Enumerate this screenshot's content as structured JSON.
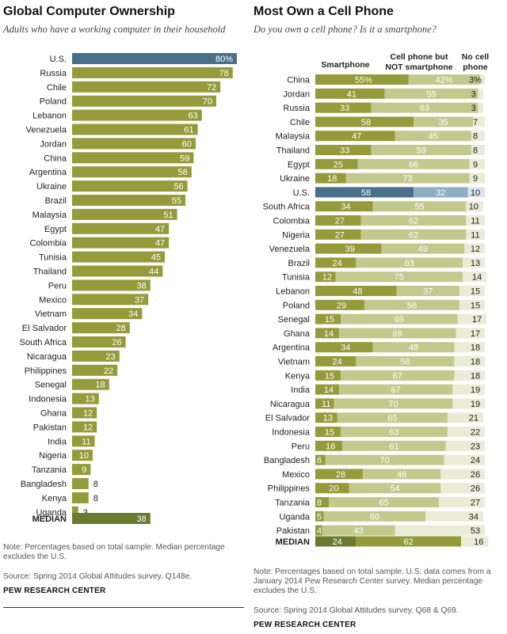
{
  "chart_data": [
    {
      "type": "bar",
      "title": "Global Computer Ownership",
      "subtitle": "Adults who have a working computer in their household",
      "categories": [
        "U.S.",
        "Russia",
        "Chile",
        "Poland",
        "Lebanon",
        "Venezuela",
        "Jordan",
        "China",
        "Argentina",
        "Ukraine",
        "Brazil",
        "Malaysia",
        "Egypt",
        "Colombia",
        "Tunisia",
        "Thailand",
        "Peru",
        "Mexico",
        "Vietnam",
        "El Salvador",
        "South Africa",
        "Nicaragua",
        "Philippines",
        "Senegal",
        "Indonesia",
        "Ghana",
        "Pakistan",
        "India",
        "Nigeria",
        "Tanzania",
        "Bangladesh",
        "Kenya",
        "Uganda",
        "MEDIAN"
      ],
      "values": [
        80,
        78,
        72,
        70,
        63,
        61,
        60,
        59,
        58,
        56,
        55,
        51,
        47,
        47,
        45,
        44,
        38,
        37,
        34,
        28,
        26,
        23,
        22,
        18,
        13,
        12,
        12,
        11,
        10,
        9,
        8,
        8,
        3,
        38
      ],
      "value_labels": [
        "80%",
        "78",
        "72",
        "70",
        "63",
        "61",
        "60",
        "59",
        "58",
        "56",
        "55",
        "51",
        "47",
        "47",
        "45",
        "44",
        "38",
        "37",
        "34",
        "28",
        "26",
        "23",
        "22",
        "18",
        "13",
        "12",
        "12",
        "11",
        "10",
        "9",
        "8",
        "8",
        "3",
        "38"
      ],
      "highlight": "U.S.",
      "summary_row": "MEDIAN",
      "xlim": [
        0,
        80
      ]
    },
    {
      "type": "bar",
      "stacked": true,
      "orientation": "horizontal",
      "title": "Most Own a Cell Phone",
      "subtitle": "Do you own a cell phone? Is it a smartphone?",
      "categories": [
        "China",
        "Jordan",
        "Russia",
        "Chile",
        "Malaysia",
        "Thailand",
        "Egypt",
        "Ukraine",
        "U.S.",
        "South Africa",
        "Colombia",
        "Nigeria",
        "Venezuela",
        "Brazil",
        "Tunisia",
        "Lebanon",
        "Poland",
        "Senegal",
        "Ghana",
        "Argentina",
        "Vietnam",
        "Kenya",
        "India",
        "Nicaragua",
        "El Salvador",
        "Indonesia",
        "Peru",
        "Bangladesh",
        "Mexico",
        "Philippines",
        "Tanzania",
        "Uganda",
        "Pakistan",
        "MEDIAN"
      ],
      "series": [
        {
          "name": "Smartphone",
          "values": [
            55,
            41,
            33,
            58,
            47,
            33,
            25,
            18,
            58,
            34,
            27,
            27,
            39,
            24,
            12,
            48,
            29,
            15,
            14,
            34,
            24,
            15,
            14,
            11,
            13,
            15,
            16,
            6,
            28,
            20,
            8,
            5,
            4,
            24
          ]
        },
        {
          "name": "Cell phone but NOT smartphone",
          "values": [
            42,
            55,
            63,
            35,
            45,
            59,
            66,
            73,
            32,
            55,
            62,
            62,
            49,
            63,
            75,
            37,
            56,
            69,
            69,
            48,
            58,
            67,
            67,
            70,
            65,
            63,
            61,
            70,
            46,
            54,
            65,
            60,
            43,
            62
          ]
        },
        {
          "name": "No cell phone",
          "values": [
            3,
            3,
            3,
            7,
            8,
            8,
            9,
            9,
            10,
            10,
            11,
            11,
            12,
            13,
            14,
            15,
            15,
            17,
            17,
            18,
            18,
            18,
            19,
            19,
            21,
            22,
            23,
            24,
            26,
            26,
            27,
            34,
            53,
            16
          ]
        }
      ],
      "first_label_suffix": "%",
      "highlight": "U.S.",
      "summary_row": "MEDIAN",
      "xlim": [
        0,
        100
      ]
    }
  ],
  "left_footer": {
    "note": "Note: Percentages based on total sample. Median percentage excludes the U.S.",
    "source": "Source: Spring 2014 Global Attitudes survey. Q148e.",
    "brand": "PEW RESEARCH CENTER"
  },
  "right_footer": {
    "note": "Note: Percentages based on total sample. U.S. data comes from a January 2014 Pew Research Center survey. Median percentage excludes the U.S.",
    "source": "Source: Spring 2014 Global Attitudes survey. Q68 & Q69.",
    "brand": "PEW RESEARCH CENTER"
  },
  "colors": {
    "left_bar": "#959b3a",
    "left_highlight": "#48708a",
    "left_median": "#6b7a2e",
    "smartphone": "#959b3a",
    "basic_phone": "#c3c98d",
    "no_phone": "#eaecd6",
    "us_smartphone": "#48708a",
    "us_basic": "#8eaec2",
    "us_none": "#d9e4ec",
    "median_smartphone": "#6b7a2e",
    "median_basic": "#959b3a",
    "median_none": "#eaecd6"
  }
}
